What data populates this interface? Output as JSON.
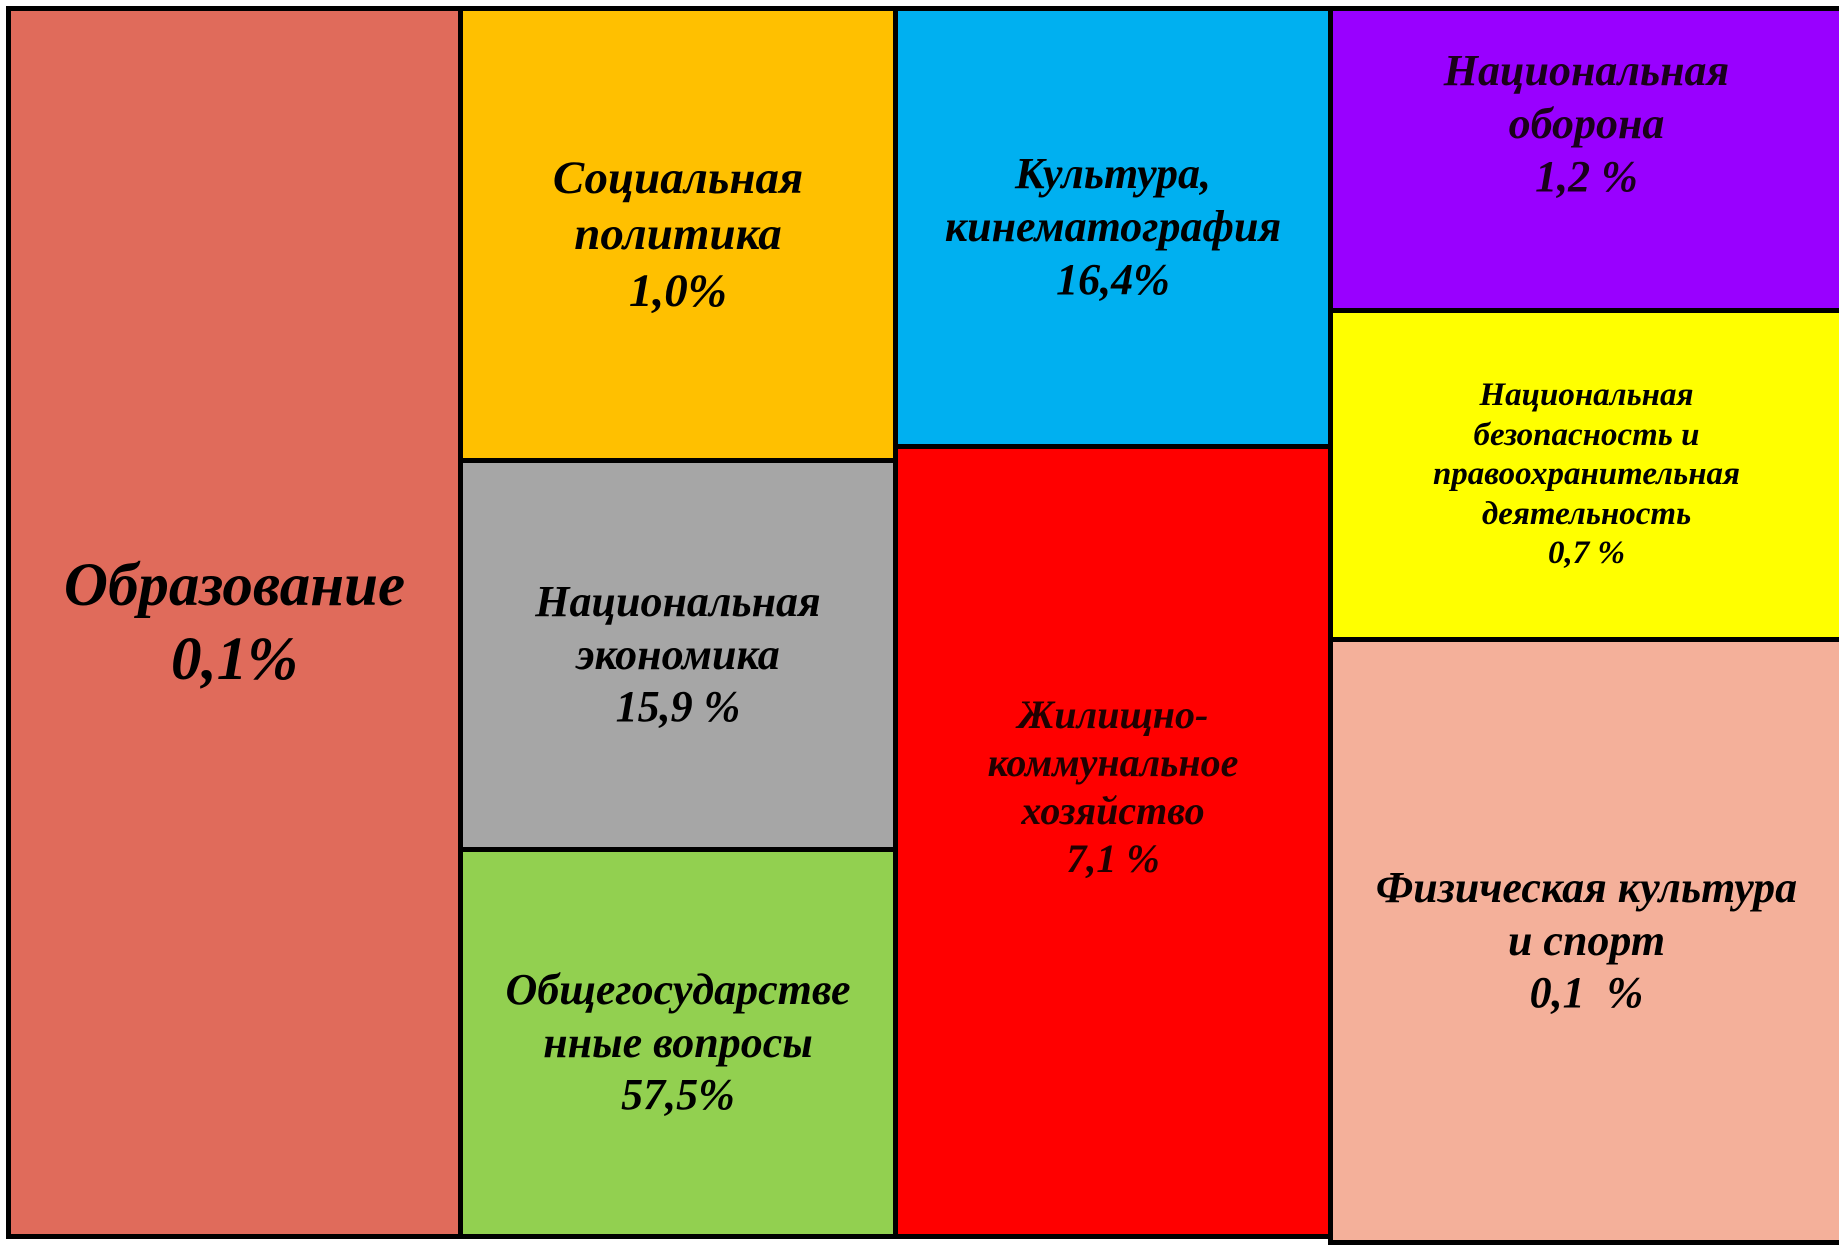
{
  "nodes": [
    {
      "lines": [
        "Образование"
      ],
      "value": "0,1%"
    },
    {
      "lines": [
        "Социальная",
        "политика"
      ],
      "value": "1,0%"
    },
    {
      "lines": [
        "Национальная",
        "экономика"
      ],
      "value": "15,9 %"
    },
    {
      "lines": [
        "Общегосударстве",
        "нные вопросы"
      ],
      "value": "57,5%"
    },
    {
      "lines": [
        "Культура,",
        "кинематография"
      ],
      "value": "16,4%"
    },
    {
      "lines": [
        "Жилищно-",
        "коммунальное",
        "хозяйство"
      ],
      "value": "7,1 %"
    },
    {
      "lines": [
        "Национальная",
        "оборона"
      ],
      "value": "1,2 %"
    },
    {
      "lines": [
        "Национальная",
        "безопасность и",
        "правоохранительная",
        "деятельность"
      ],
      "value": "0,7 %"
    },
    {
      "lines": [
        "Физическая культура",
        "и спорт"
      ],
      "value": "0,1  %"
    }
  ]
}
